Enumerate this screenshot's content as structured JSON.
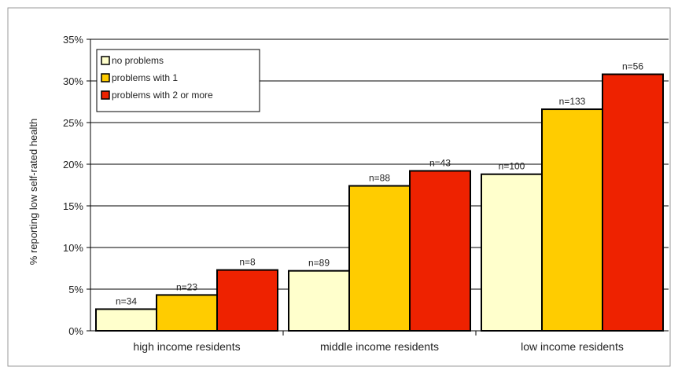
{
  "chart_data": {
    "type": "bar",
    "title": "",
    "xlabel": "",
    "ylabel": "% reporting low self-rated health",
    "ylim": [
      0,
      35
    ],
    "yticks": [
      0,
      5,
      10,
      15,
      20,
      25,
      30,
      35
    ],
    "ytick_labels": [
      "0%",
      "5%",
      "10%",
      "15%",
      "20%",
      "25%",
      "30%",
      "35%"
    ],
    "grid": true,
    "legend_position": "top-left",
    "categories": [
      "high income residents",
      "middle income residents",
      "low income residents"
    ],
    "series": [
      {
        "name": "no problems",
        "color": "#FFFFCC",
        "values": [
          2.6,
          7.2,
          18.8
        ],
        "labels": [
          "n=34",
          "n=89",
          "n=100"
        ]
      },
      {
        "name": "problems with 1",
        "color": "#FFCC00",
        "values": [
          4.3,
          17.4,
          26.6
        ],
        "labels": [
          "n=23",
          "n=88",
          "n=133"
        ]
      },
      {
        "name": "problems with 2 or more",
        "color": "#EE2200",
        "values": [
          7.3,
          19.2,
          30.8
        ],
        "labels": [
          "n=8",
          "n=43",
          "n=56"
        ]
      }
    ]
  }
}
